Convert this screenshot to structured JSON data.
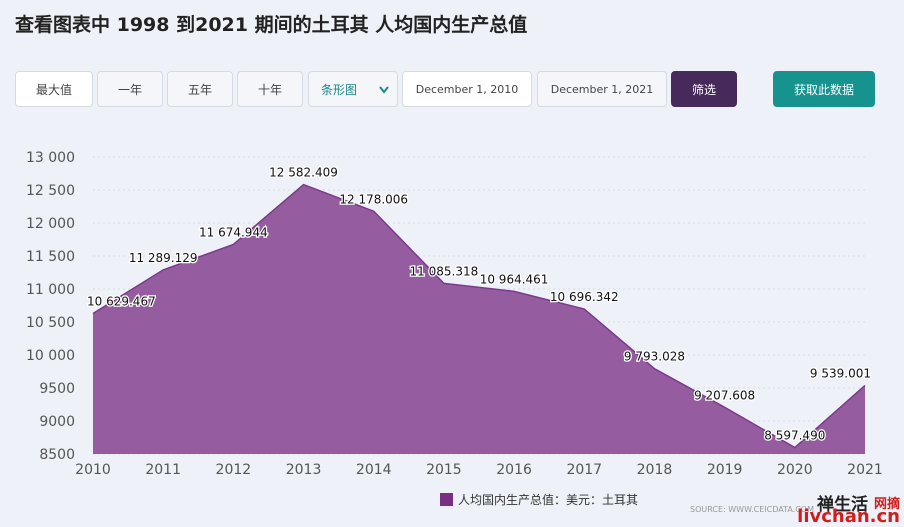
{
  "chart_data": {
    "type": "area",
    "title": "查看图表中 1998 到2021 期间的土耳其 人均国内生产总值",
    "categories": [
      "2010",
      "2011",
      "2012",
      "2013",
      "2014",
      "2015",
      "2016",
      "2017",
      "2018",
      "2019",
      "2020",
      "2021"
    ],
    "series": [
      {
        "name": "人均国内生产总值：美元：土耳其",
        "color": "#955ca0",
        "line_color": "#7b3a8b",
        "legend_color": "#7b2f83",
        "values": [
          10629.467,
          11289.129,
          11674.944,
          12582.409,
          12178.006,
          11085.318,
          10964.461,
          10696.342,
          9793.028,
          9207.608,
          8597.49,
          9539.001
        ],
        "value_labels": [
          "10 629.467",
          "11 289.129",
          "11 674.944",
          "12 582.409",
          "12 178.006",
          "11 085.318",
          "10 964.461",
          "10 696.342",
          "9 793.028",
          "9 207.608",
          "8 597.490",
          "9 539.001"
        ]
      }
    ],
    "ylim": [
      8500,
      13000
    ],
    "yticks": [
      8500,
      9000,
      9500,
      {
        "value": 10000,
        "label": "10 000"
      },
      {
        "value": 10500,
        "label": "10 500"
      },
      {
        "value": 11000,
        "label": "11 000"
      },
      {
        "value": 11500,
        "label": "11 500"
      },
      {
        "value": 12000,
        "label": "12 000"
      },
      {
        "value": 12500,
        "label": "12 500"
      },
      {
        "value": 13000,
        "label": "13 000"
      }
    ],
    "grid": true,
    "source": "SOURCE: WWW.CEICDATA.COM"
  },
  "controls": {
    "buttons": [
      "最大值",
      "一年",
      "五年",
      "十年"
    ],
    "chart_type": "条形图",
    "start_date": "December 1, 2010",
    "end_date": "December 1, 2021",
    "filter": "筛选",
    "download": "获取此数据"
  },
  "watermark": {
    "name": "禅生活",
    "suffix": "网摘",
    "url": "livchan.cn"
  }
}
